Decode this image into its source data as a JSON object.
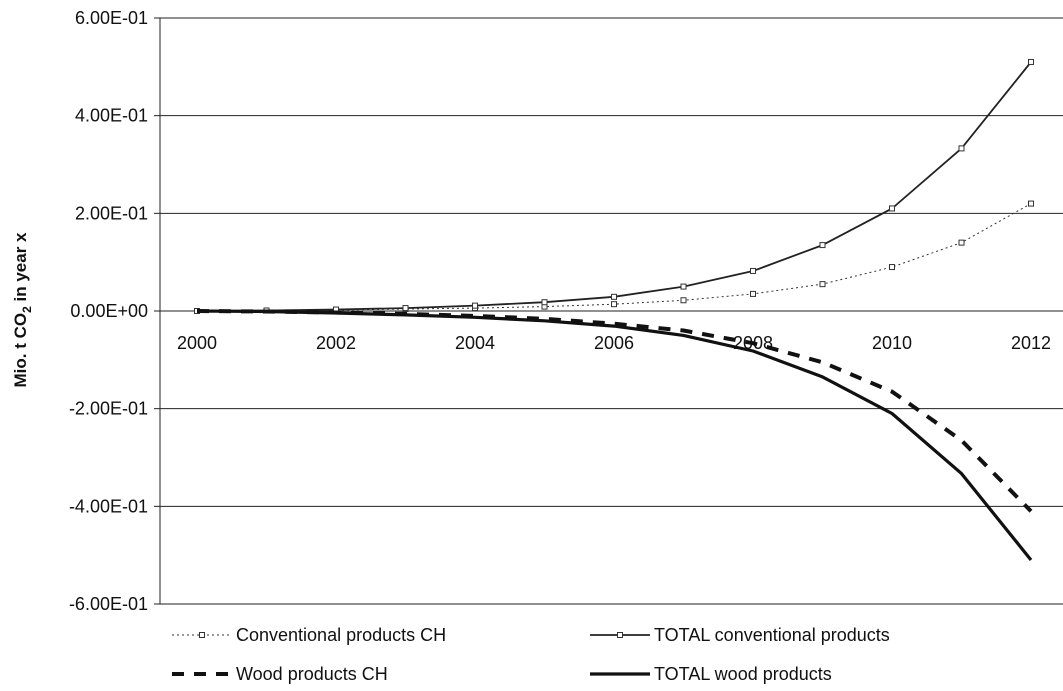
{
  "chart_data": {
    "type": "line",
    "title": "",
    "ylabel": {
      "prefix": "Mio. t CO",
      "subscript": "2",
      "suffix": " in year x"
    },
    "xlabel": "",
    "x": [
      2000,
      2001,
      2002,
      2003,
      2004,
      2005,
      2006,
      2007,
      2008,
      2009,
      2010,
      2011,
      2012
    ],
    "x_tick_labels": [
      "2000",
      "2002",
      "2004",
      "2006",
      "2008",
      "2010",
      "2012"
    ],
    "ylim": [
      -0.6,
      0.6
    ],
    "y_tick_labels": [
      "6.00E-01",
      "4.00E-01",
      "2.00E-01",
      "0.00E+00",
      "-2.00E-01",
      "-4.00E-01",
      "-6.00E-01"
    ],
    "grid": "horizontal",
    "legend_position": "bottom",
    "series": [
      {
        "name": "Conventional products CH",
        "style": "dotted-square-markers",
        "values": [
          0.0,
          0.001,
          0.002,
          0.004,
          0.006,
          0.009,
          0.014,
          0.022,
          0.035,
          0.055,
          0.09,
          0.14,
          0.22
        ]
      },
      {
        "name": "TOTAL conventional products",
        "style": "solid-square-markers",
        "values": [
          0.0,
          0.001,
          0.003,
          0.006,
          0.011,
          0.018,
          0.029,
          0.05,
          0.082,
          0.135,
          0.21,
          0.333,
          0.51
        ]
      },
      {
        "name": "Wood products CH",
        "style": "thick-dashed",
        "values": [
          0.0,
          -0.001,
          -0.003,
          -0.006,
          -0.01,
          -0.016,
          -0.026,
          -0.04,
          -0.066,
          -0.105,
          -0.165,
          -0.265,
          -0.41
        ]
      },
      {
        "name": "TOTAL wood products",
        "style": "thick-solid",
        "values": [
          0.0,
          -0.001,
          -0.004,
          -0.008,
          -0.013,
          -0.02,
          -0.031,
          -0.05,
          -0.082,
          -0.135,
          -0.21,
          -0.333,
          -0.51
        ]
      }
    ]
  }
}
